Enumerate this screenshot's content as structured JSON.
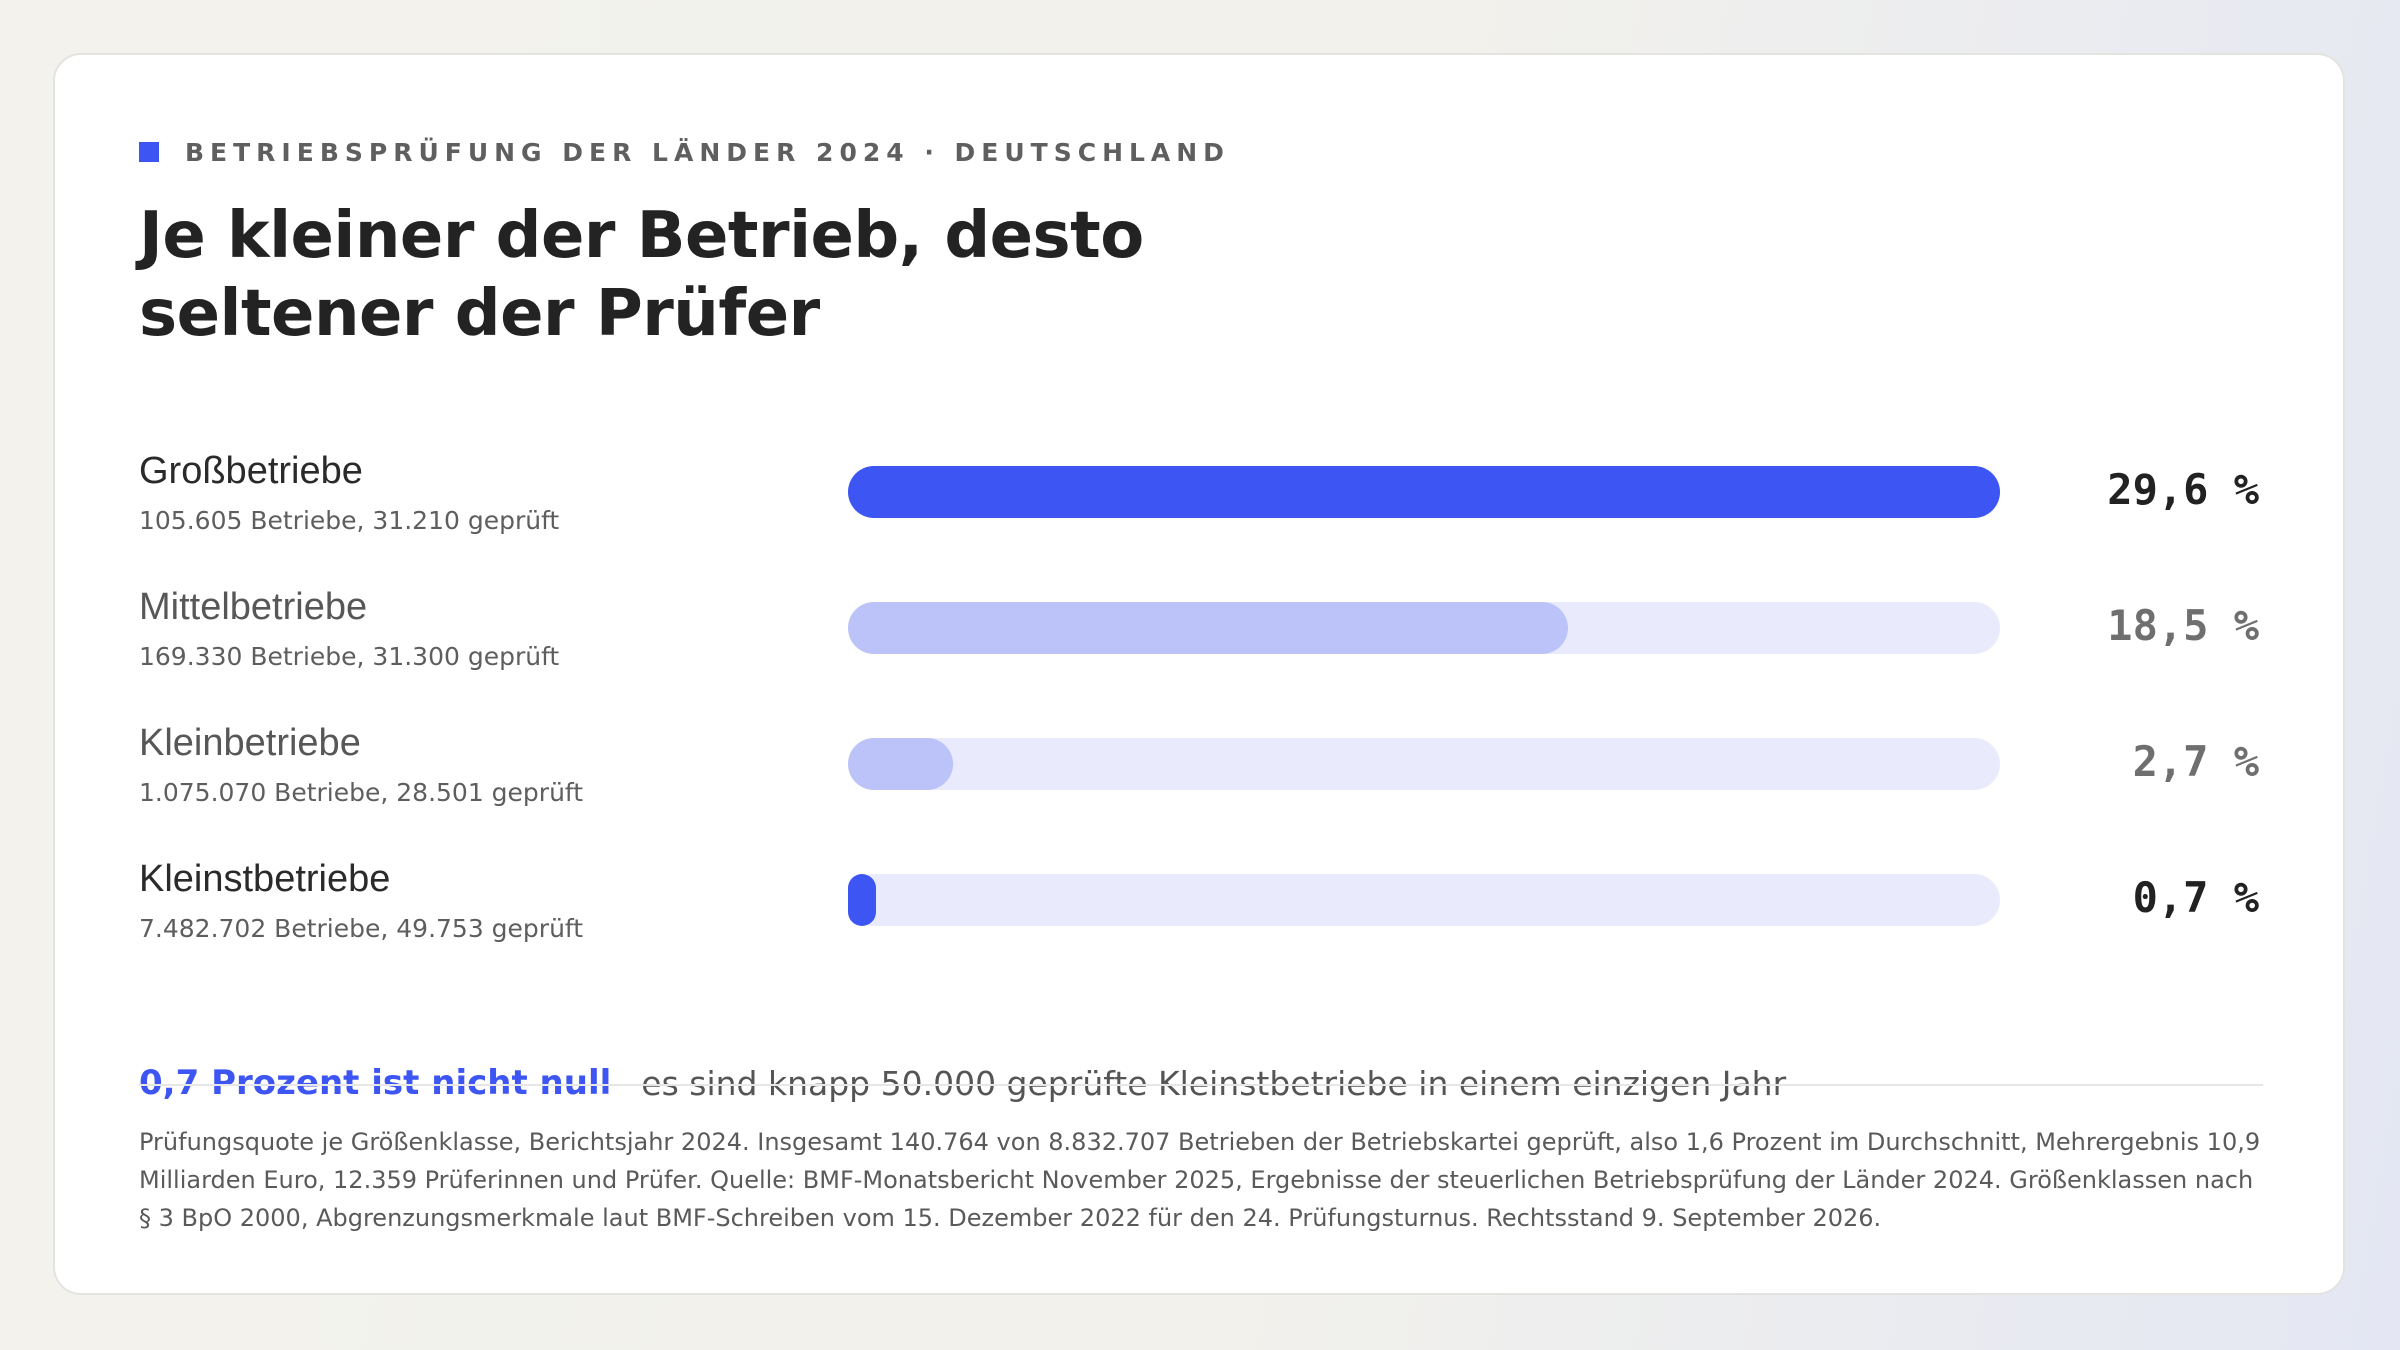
{
  "kicker": "BETRIEBSPRÜFUNG DER LÄNDER 2024 · DEUTSCHLAND",
  "title": "Je kleiner der Betrieb, desto seltener der Prüfer",
  "note": {
    "highlight": "0,7 Prozent ist nicht null",
    "text": "es sind knapp 50.000 geprüfte Kleinstbetriebe in einem einzigen Jahr"
  },
  "footnote": "Prüfungsquote je Größenklasse, Berichtsjahr 2024. Insgesamt 140.764 von 8.832.707 Betrieben der Betriebskartei geprüft, also 1,6 Prozent im Durchschnitt, Mehrergebnis 10,9 Milliarden Euro, 12.359 Prüferinnen und Prüfer. Quelle: BMF-Monatsbericht November 2025, Ergebnisse der steuerlichen Betriebsprüfung der Länder 2024. Größenklassen nach § 3 BpO 2000, Abgrenzungsmerkmale laut BMF-Schreiben vom 15. Dezember 2022 für den 24. Prüfungsturnus. Rechtsstand 9. September 2026.",
  "colors": {
    "accent": "#3d55f2",
    "bar_light": "#bcc3f9",
    "track": "#e9ebfd"
  },
  "chart_data": {
    "type": "bar",
    "orientation": "horizontal",
    "categories": [
      "Großbetriebe",
      "Mittelbetriebe",
      "Kleinbetriebe",
      "Kleinstbetriebe"
    ],
    "subtitles": [
      "105.605 Betriebe, 31.210 geprüft",
      "169.330 Betriebe, 31.300 geprüft",
      "1.075.070 Betriebe, 28.501 geprüft",
      "7.482.702 Betriebe, 49.753 geprüft"
    ],
    "values": [
      29.6,
      18.5,
      2.7,
      0.7
    ],
    "value_labels": [
      "29,6 %",
      "18,5 %",
      "2,7 %",
      "0,7 %"
    ],
    "highlighted": [
      true,
      false,
      false,
      true
    ],
    "xlim": [
      0,
      29.6
    ],
    "grid": false,
    "legend": "none"
  }
}
